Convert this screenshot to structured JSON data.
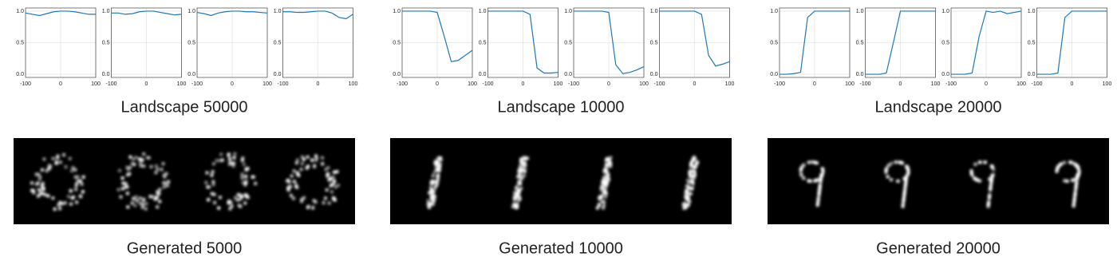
{
  "chart_data": [
    {
      "type": "line",
      "x": [
        -100,
        -80,
        -60,
        -40,
        -20,
        0,
        20,
        40,
        60,
        80,
        100
      ],
      "series": [
        {
          "color": "#1f77b4",
          "values": [
            0.97,
            0.95,
            0.93,
            0.96,
            0.99,
            1.0,
            1.0,
            0.99,
            0.97,
            0.95,
            0.95
          ]
        }
      ],
      "xlim": [
        -100,
        100
      ],
      "ylim": [
        -0.05,
        1.05
      ],
      "xticks": [
        -100,
        0,
        100
      ],
      "yticks": [
        {
          "value": 0,
          "label": "0.0"
        },
        {
          "value": 0.5,
          "label": "0.5"
        },
        {
          "value": 1,
          "label": "1.0"
        }
      ],
      "grid": true
    },
    {
      "type": "line",
      "x": [
        -100,
        -80,
        -60,
        -40,
        -20,
        0,
        20,
        40,
        60,
        80,
        100
      ],
      "series": [
        {
          "color": "#1f77b4",
          "values": [
            0.97,
            0.97,
            0.95,
            0.96,
            0.99,
            1.0,
            1.0,
            0.98,
            0.96,
            0.94,
            0.95
          ]
        }
      ],
      "xlim": [
        -100,
        100
      ],
      "ylim": [
        -0.05,
        1.05
      ],
      "xticks": [
        -100,
        0,
        100
      ],
      "yticks": [
        {
          "value": 0,
          "label": "0.0"
        },
        {
          "value": 0.5,
          "label": "0.5"
        },
        {
          "value": 1,
          "label": "1.0"
        }
      ],
      "grid": true
    },
    {
      "type": "line",
      "x": [
        -100,
        -80,
        -60,
        -40,
        -20,
        0,
        20,
        40,
        60,
        80,
        100
      ],
      "series": [
        {
          "color": "#1f77b4",
          "values": [
            0.98,
            0.96,
            0.93,
            0.97,
            0.99,
            1.0,
            1.0,
            0.99,
            0.99,
            0.98,
            0.97
          ]
        }
      ],
      "xlim": [
        -100,
        100
      ],
      "ylim": [
        -0.05,
        1.05
      ],
      "xticks": [
        -100,
        0,
        100
      ],
      "yticks": [
        {
          "value": 0,
          "label": "0.0"
        },
        {
          "value": 0.5,
          "label": "0.5"
        },
        {
          "value": 1,
          "label": "1.0"
        }
      ],
      "grid": true
    },
    {
      "type": "line",
      "x": [
        -100,
        -80,
        -60,
        -40,
        -20,
        0,
        20,
        40,
        60,
        80,
        100
      ],
      "series": [
        {
          "color": "#1f77b4",
          "values": [
            0.99,
            0.99,
            0.98,
            0.98,
            0.99,
            1.0,
            1.0,
            0.97,
            0.9,
            0.88,
            0.95
          ]
        }
      ],
      "xlim": [
        -100,
        100
      ],
      "ylim": [
        -0.05,
        1.05
      ],
      "xticks": [
        -100,
        0,
        100
      ],
      "yticks": [
        {
          "value": 0,
          "label": "0.0"
        },
        {
          "value": 0.5,
          "label": "0.5"
        },
        {
          "value": 1,
          "label": "1.0"
        }
      ],
      "grid": true
    },
    {
      "type": "line",
      "x": [
        -100,
        -80,
        -60,
        -40,
        -20,
        0,
        20,
        40,
        60,
        80,
        100
      ],
      "series": [
        {
          "color": "#1f77b4",
          "values": [
            1,
            1,
            1,
            1,
            1,
            0.98,
            0.6,
            0.2,
            0.22,
            0.3,
            0.38
          ]
        }
      ],
      "xlim": [
        -100,
        100
      ],
      "ylim": [
        -0.05,
        1.05
      ],
      "xticks": [
        -100,
        0,
        100
      ],
      "yticks": [
        {
          "value": 0,
          "label": "0.0"
        },
        {
          "value": 0.5,
          "label": "0.5"
        },
        {
          "value": 1,
          "label": "1.0"
        }
      ],
      "grid": true
    },
    {
      "type": "line",
      "x": [
        -100,
        -80,
        -60,
        -40,
        -20,
        0,
        20,
        40,
        60,
        80,
        100
      ],
      "series": [
        {
          "color": "#1f77b4",
          "values": [
            1,
            1,
            1,
            1,
            1,
            1,
            0.95,
            0.1,
            0.02,
            0.02,
            0.03
          ]
        }
      ],
      "xlim": [
        -100,
        100
      ],
      "ylim": [
        -0.05,
        1.05
      ],
      "xticks": [
        -100,
        0,
        100
      ],
      "yticks": [
        {
          "value": 0,
          "label": "0.0"
        },
        {
          "value": 0.5,
          "label": "0.5"
        },
        {
          "value": 1,
          "label": "1.0"
        }
      ],
      "grid": true
    },
    {
      "type": "line",
      "x": [
        -100,
        -80,
        -60,
        -40,
        -20,
        0,
        20,
        40,
        60,
        80,
        100
      ],
      "series": [
        {
          "color": "#1f77b4",
          "values": [
            1,
            1,
            1,
            1,
            1,
            0.98,
            0.15,
            0.01,
            0.03,
            0.07,
            0.12
          ]
        }
      ],
      "xlim": [
        -100,
        100
      ],
      "ylim": [
        -0.05,
        1.05
      ],
      "xticks": [
        -100,
        0,
        100
      ],
      "yticks": [
        {
          "value": 0,
          "label": "0.0"
        },
        {
          "value": 0.5,
          "label": "0.5"
        },
        {
          "value": 1,
          "label": "1.0"
        }
      ],
      "grid": true
    },
    {
      "type": "line",
      "x": [
        -100,
        -80,
        -60,
        -40,
        -20,
        0,
        20,
        40,
        60,
        80,
        100
      ],
      "series": [
        {
          "color": "#1f77b4",
          "values": [
            1,
            1,
            1,
            1,
            1,
            1,
            0.95,
            0.3,
            0.13,
            0.16,
            0.2
          ]
        }
      ],
      "xlim": [
        -100,
        100
      ],
      "ylim": [
        -0.05,
        1.05
      ],
      "xticks": [
        -100,
        0,
        100
      ],
      "yticks": [
        {
          "value": 0,
          "label": "0.0"
        },
        {
          "value": 0.5,
          "label": "0.5"
        },
        {
          "value": 1,
          "label": "1.0"
        }
      ],
      "grid": true
    },
    {
      "type": "line",
      "x": [
        -100,
        -80,
        -60,
        -40,
        -20,
        0,
        20,
        40,
        60,
        80,
        100
      ],
      "series": [
        {
          "color": "#1f77b4",
          "values": [
            0,
            0,
            0.01,
            0.03,
            0.9,
            1,
            1,
            1,
            1,
            1,
            1
          ]
        }
      ],
      "xlim": [
        -100,
        100
      ],
      "ylim": [
        -0.05,
        1.05
      ],
      "xticks": [
        -100,
        0,
        100
      ],
      "yticks": [
        {
          "value": 0,
          "label": "0.0"
        },
        {
          "value": 0.5,
          "label": "0.5"
        },
        {
          "value": 1,
          "label": "1.0"
        }
      ],
      "grid": true
    },
    {
      "type": "line",
      "x": [
        -100,
        -80,
        -60,
        -40,
        -20,
        0,
        20,
        40,
        60,
        80,
        100
      ],
      "series": [
        {
          "color": "#1f77b4",
          "values": [
            0,
            0,
            0,
            0.02,
            0.5,
            1,
            1,
            1,
            1,
            1,
            1
          ]
        }
      ],
      "xlim": [
        -100,
        100
      ],
      "ylim": [
        -0.05,
        1.05
      ],
      "xticks": [
        -100,
        0,
        100
      ],
      "yticks": [
        {
          "value": 0,
          "label": "0.0"
        },
        {
          "value": 0.5,
          "label": "0.5"
        },
        {
          "value": 1,
          "label": "1.0"
        }
      ],
      "grid": true
    },
    {
      "type": "line",
      "x": [
        -100,
        -80,
        -60,
        -40,
        -20,
        0,
        20,
        40,
        60,
        80,
        100
      ],
      "series": [
        {
          "color": "#1f77b4",
          "values": [
            0,
            0,
            0,
            0.02,
            0.6,
            1,
            0.98,
            1,
            0.96,
            0.98,
            1
          ]
        }
      ],
      "xlim": [
        -100,
        100
      ],
      "ylim": [
        -0.05,
        1.05
      ],
      "xticks": [
        -100,
        0,
        100
      ],
      "yticks": [
        {
          "value": 0,
          "label": "0.0"
        },
        {
          "value": 0.5,
          "label": "0.5"
        },
        {
          "value": 1,
          "label": "1.0"
        }
      ],
      "grid": true
    },
    {
      "type": "line",
      "x": [
        -100,
        -80,
        -60,
        -40,
        -20,
        0,
        20,
        40,
        60,
        80,
        100
      ],
      "series": [
        {
          "color": "#1f77b4",
          "values": [
            0,
            0,
            0,
            0.02,
            0.9,
            1,
            1,
            1,
            1,
            1,
            1
          ]
        }
      ],
      "xlim": [
        -100,
        100
      ],
      "ylim": [
        -0.05,
        1.05
      ],
      "xticks": [
        -100,
        0,
        100
      ],
      "yticks": [
        {
          "value": 0,
          "label": "0.0"
        },
        {
          "value": 0.5,
          "label": "0.5"
        },
        {
          "value": 1,
          "label": "1.0"
        }
      ],
      "grid": true
    }
  ],
  "groups": [
    {
      "landscape": "Landscape 50000",
      "generated": "Generated 5000"
    },
    {
      "landscape": "Landscape 10000",
      "generated": "Generated 10000"
    },
    {
      "landscape": "Landscape 20000",
      "generated": "Generated 20000"
    }
  ]
}
